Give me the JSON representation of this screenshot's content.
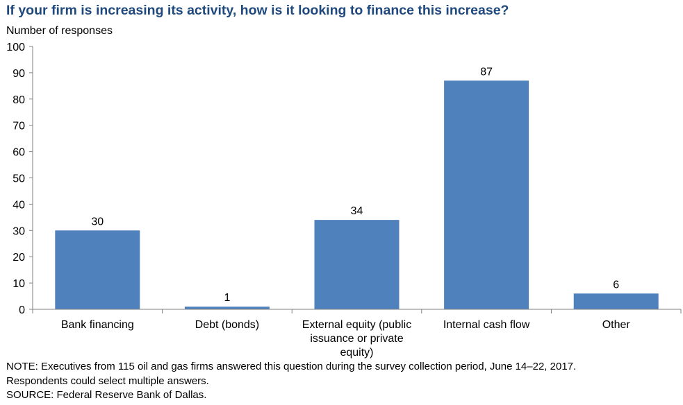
{
  "chart_data": {
    "type": "bar",
    "title": "If your firm is increasing its activity, how is it looking to finance this increase?",
    "ylabel": "Number of responses",
    "xlabel": "",
    "ylim": [
      0,
      100
    ],
    "yticks": [
      "0",
      "10",
      "20",
      "30",
      "40",
      "50",
      "60",
      "70",
      "80",
      "90",
      "100"
    ],
    "categories": [
      "Bank financing",
      "Debt (bonds)",
      "External equity (public issuance or private equity)",
      "Internal cash flow",
      "Other"
    ],
    "category_label_lines": [
      [
        "Bank financing"
      ],
      [
        "Debt (bonds)"
      ],
      [
        "External equity (public",
        "issuance or private",
        "equity)"
      ],
      [
        "Internal cash flow"
      ],
      [
        "Other"
      ]
    ],
    "values": [
      30,
      1,
      34,
      87,
      6
    ],
    "data_labels": [
      "30",
      "1",
      "34",
      "87",
      "6"
    ],
    "bar_color": "#4f81bd",
    "grid": false,
    "legend": "none"
  },
  "notes": {
    "line1": "NOTE: Executives from 115 oil and gas firms answered this question during the survey collection period, June 14–22, 2017.",
    "line2": "Respondents could select multiple answers.",
    "source": "SOURCE: Federal Reserve Bank of Dallas."
  }
}
